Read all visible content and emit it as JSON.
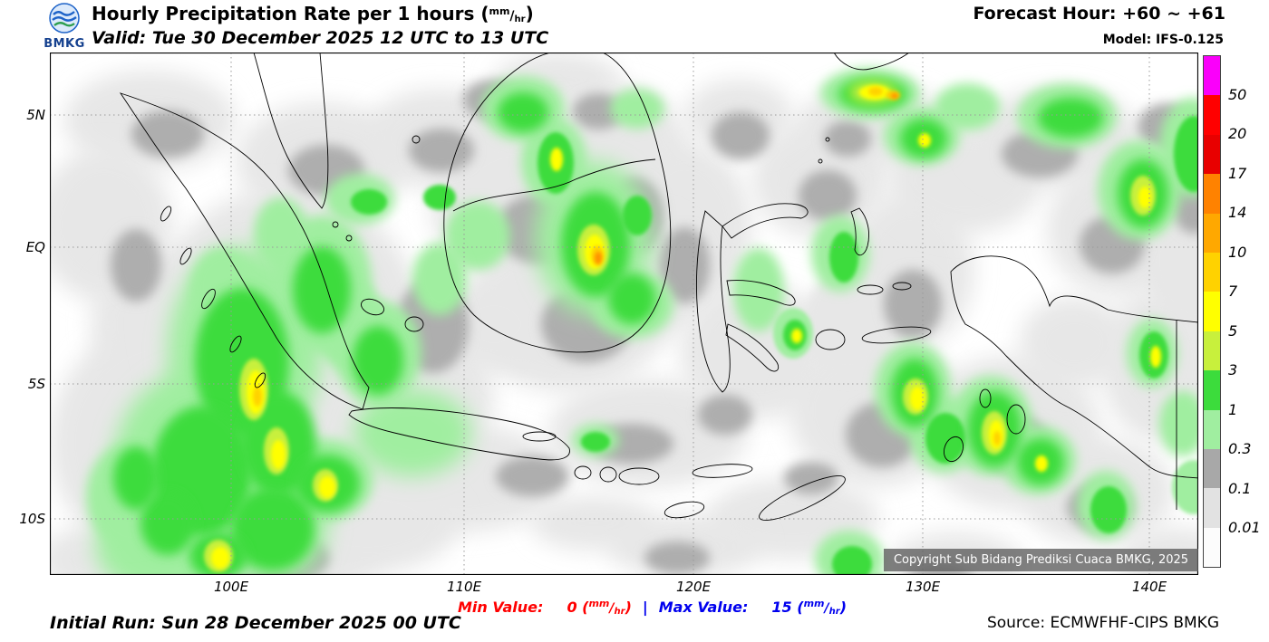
{
  "header": {
    "title_prefix": "Hourly Precipitation Rate per 1 hours ",
    "valid": "Valid: Tue 30 December 2025 12 UTC to 13 UTC",
    "forecast_hour": "Forecast Hour: +60 ~ +61",
    "model": "Model: IFS-0.125",
    "logo_text": "BMKG"
  },
  "units": {
    "open": "(",
    "num": "mm",
    "slash": "/",
    "den": "hr",
    "close": ")"
  },
  "axes": {
    "y": [
      "5N",
      "EQ",
      "5S",
      "10S"
    ],
    "x": [
      "100E",
      "110E",
      "120E",
      "130E",
      "140E"
    ]
  },
  "legend": {
    "labels": [
      "50",
      "20",
      "17",
      "14",
      "10",
      "7",
      "5",
      "3",
      "1",
      "0.3",
      "0.1",
      "0.01"
    ],
    "colors": [
      "#fa00fa",
      "#ff0000",
      "#e80000",
      "#ff8200",
      "#ffa800",
      "#ffd200",
      "#ffff00",
      "#c8f03c",
      "#3cdc3c",
      "#a0eea0",
      "#a8a8a8",
      "#e2e2e2",
      "#fcfcfc"
    ]
  },
  "map": {
    "copyright": "Copyright Sub Bidang Prediksi Cuaca BMKG, 2025",
    "level_colors": [
      "#e7e7e7",
      "#aeaeae",
      "#a0eea0",
      "#3cdc3c",
      "#c8f03c",
      "#ffff00",
      "#ffd200",
      "#ff9000"
    ],
    "blobs": [
      [
        0,
        110,
        75,
        95,
        55
      ],
      [
        0,
        60,
        190,
        75,
        85
      ],
      [
        0,
        135,
        300,
        90,
        80
      ],
      [
        0,
        120,
        430,
        120,
        130
      ],
      [
        0,
        240,
        545,
        130,
        55
      ],
      [
        0,
        300,
        120,
        95,
        65
      ],
      [
        0,
        430,
        95,
        85,
        55
      ],
      [
        0,
        260,
        300,
        150,
        150
      ],
      [
        0,
        390,
        380,
        100,
        90
      ],
      [
        0,
        450,
        470,
        120,
        60
      ],
      [
        0,
        520,
        170,
        100,
        85
      ],
      [
        0,
        620,
        110,
        85,
        75
      ],
      [
        0,
        570,
        290,
        110,
        85
      ],
      [
        0,
        700,
        195,
        75,
        95
      ],
      [
        0,
        660,
        420,
        110,
        60
      ],
      [
        0,
        780,
        330,
        85,
        75
      ],
      [
        0,
        850,
        140,
        75,
        65
      ],
      [
        0,
        910,
        80,
        85,
        45
      ],
      [
        0,
        950,
        240,
        70,
        85
      ],
      [
        0,
        910,
        395,
        95,
        85
      ],
      [
        0,
        1010,
        140,
        85,
        60
      ],
      [
        0,
        1110,
        95,
        95,
        55
      ],
      [
        0,
        1185,
        195,
        85,
        75
      ],
      [
        0,
        1060,
        420,
        100,
        85
      ],
      [
        0,
        1155,
        485,
        85,
        60
      ],
      [
        0,
        1225,
        345,
        65,
        85
      ],
      [
        0,
        1265,
        230,
        55,
        75
      ],
      [
        0,
        820,
        515,
        95,
        45
      ],
      [
        0,
        700,
        545,
        85,
        35
      ],
      [
        0,
        350,
        520,
        100,
        55
      ],
      [
        0,
        1000,
        565,
        75,
        35
      ],
      [
        0,
        600,
        520,
        70,
        30
      ],
      [
        0,
        760,
        70,
        60,
        40
      ],
      [
        0,
        560,
        30,
        70,
        30
      ],
      [
        0,
        660,
        250,
        60,
        70
      ],
      [
        0,
        880,
        300,
        50,
        60
      ],
      [
        0,
        1130,
        320,
        60,
        50
      ],
      [
        0,
        1240,
        560,
        60,
        35
      ],
      [
        0,
        490,
        300,
        60,
        50
      ],
      [
        0,
        60,
        560,
        70,
        40
      ],
      [
        1,
        130,
        90,
        40,
        26
      ],
      [
        1,
        95,
        235,
        28,
        40
      ],
      [
        1,
        305,
        130,
        42,
        28
      ],
      [
        1,
        432,
        108,
        36,
        24
      ],
      [
        1,
        540,
        195,
        48,
        38
      ],
      [
        1,
        592,
        300,
        50,
        42
      ],
      [
        1,
        645,
        180,
        32,
        42
      ],
      [
        1,
        700,
        235,
        28,
        42
      ],
      [
        1,
        762,
        92,
        32,
        26
      ],
      [
        1,
        858,
        158,
        32,
        28
      ],
      [
        1,
        952,
        278,
        32,
        38
      ],
      [
        1,
        1092,
        112,
        42,
        26
      ],
      [
        1,
        1172,
        212,
        36,
        32
      ],
      [
        1,
        1232,
        82,
        32,
        26
      ],
      [
        1,
        642,
        432,
        46,
        22
      ],
      [
        1,
        532,
        468,
        40,
        22
      ],
      [
        1,
        918,
        422,
        40,
        36
      ],
      [
        1,
        1062,
        432,
        40,
        32
      ],
      [
        1,
        1158,
        502,
        36,
        26
      ],
      [
        1,
        262,
        558,
        46,
        26
      ],
      [
        1,
        692,
        558,
        36,
        18
      ],
      [
        1,
        982,
        588,
        40,
        22
      ],
      [
        1,
        422,
        302,
        40,
        52
      ],
      [
        1,
        202,
        352,
        36,
        46
      ],
      [
        1,
        488,
        52,
        32,
        22
      ],
      [
        1,
        605,
        65,
        28,
        20
      ],
      [
        1,
        880,
        95,
        26,
        20
      ],
      [
        1,
        1262,
        160,
        26,
        40
      ],
      [
        1,
        745,
        400,
        30,
        22
      ],
      [
        1,
        840,
        470,
        30,
        18
      ],
      [
        2,
        215,
        330,
        85,
        115
      ],
      [
        2,
        165,
        455,
        95,
        105
      ],
      [
        2,
        125,
        545,
        75,
        55
      ],
      [
        2,
        300,
        255,
        55,
        75
      ],
      [
        2,
        362,
        332,
        48,
        58
      ],
      [
        2,
        400,
        420,
        65,
        48
      ],
      [
        2,
        342,
        162,
        38,
        28
      ],
      [
        2,
        600,
        205,
        65,
        85
      ],
      [
        2,
        556,
        120,
        36,
        48
      ],
      [
        2,
        642,
        278,
        46,
        38
      ],
      [
        2,
        472,
        202,
        36,
        38
      ],
      [
        2,
        872,
        222,
        32,
        42
      ],
      [
        2,
        522,
        62,
        46,
        36
      ],
      [
        2,
        905,
        45,
        55,
        28
      ],
      [
        2,
        962,
        92,
        42,
        32
      ],
      [
        2,
        1012,
        60,
        36,
        26
      ],
      [
        2,
        1122,
        70,
        55,
        36
      ],
      [
        2,
        1202,
        152,
        46,
        55
      ],
      [
        2,
        1260,
        105,
        36,
        55
      ],
      [
        2,
        952,
        372,
        42,
        52
      ],
      [
        2,
        986,
        422,
        38,
        42
      ],
      [
        2,
        1038,
        412,
        46,
        55
      ],
      [
        2,
        1090,
        450,
        42,
        38
      ],
      [
        2,
        1165,
        500,
        32,
        38
      ],
      [
        2,
        1216,
        332,
        28,
        38
      ],
      [
        2,
        242,
        522,
        65,
        65
      ],
      [
        2,
        302,
        472,
        55,
        46
      ],
      [
        2,
        882,
        560,
        38,
        32
      ],
      [
        2,
        905,
        598,
        32,
        22
      ],
      [
        2,
        782,
        262,
        28,
        46
      ],
      [
        2,
        820,
        310,
        22,
        28
      ],
      [
        2,
        602,
        428,
        26,
        18
      ],
      [
        2,
        648,
        62,
        30,
        22
      ],
      [
        2,
        1250,
        410,
        26,
        36
      ],
      [
        2,
        1262,
        480,
        24,
        30
      ],
      [
        2,
        430,
        250,
        30,
        40
      ],
      [
        2,
        330,
        300,
        40,
        50
      ],
      [
        2,
        255,
        200,
        30,
        40
      ],
      [
        2,
        190,
        260,
        35,
        45
      ],
      [
        2,
        90,
        490,
        50,
        60
      ],
      [
        3,
        212,
        342,
        52,
        82
      ],
      [
        3,
        168,
        462,
        55,
        72
      ],
      [
        3,
        252,
        432,
        42,
        58
      ],
      [
        3,
        300,
        262,
        32,
        48
      ],
      [
        3,
        362,
        340,
        28,
        38
      ],
      [
        3,
        602,
        212,
        38,
        58
      ],
      [
        3,
        642,
        272,
        26,
        28
      ],
      [
        3,
        558,
        122,
        20,
        34
      ],
      [
        3,
        522,
        66,
        28,
        22
      ],
      [
        3,
        876,
        226,
        16,
        28
      ],
      [
        3,
        908,
        46,
        38,
        18
      ],
      [
        3,
        964,
        95,
        26,
        22
      ],
      [
        3,
        1126,
        72,
        36,
        22
      ],
      [
        3,
        1206,
        156,
        28,
        38
      ],
      [
        3,
        1262,
        112,
        22,
        42
      ],
      [
        3,
        954,
        376,
        26,
        38
      ],
      [
        3,
        988,
        426,
        22,
        28
      ],
      [
        3,
        1042,
        416,
        30,
        42
      ],
      [
        3,
        1093,
        452,
        26,
        26
      ],
      [
        3,
        1218,
        334,
        16,
        26
      ],
      [
        3,
        246,
        526,
        46,
        46
      ],
      [
        3,
        306,
        476,
        36,
        32
      ],
      [
        3,
        186,
        556,
        32,
        26
      ],
      [
        3,
        885,
        565,
        22,
        20
      ],
      [
        3,
        822,
        312,
        13,
        17
      ],
      [
        3,
        352,
        165,
        20,
        14
      ],
      [
        3,
        1168,
        505,
        20,
        26
      ],
      [
        3,
        602,
        430,
        16,
        11
      ],
      [
        3,
        130,
        520,
        30,
        35
      ],
      [
        3,
        95,
        470,
        25,
        35
      ],
      [
        3,
        430,
        160,
        18,
        14
      ],
      [
        3,
        648,
        180,
        16,
        22
      ],
      [
        4,
        225,
        372,
        16,
        34
      ],
      [
        4,
        250,
        440,
        14,
        26
      ],
      [
        4,
        304,
        478,
        14,
        18
      ],
      [
        4,
        600,
        218,
        18,
        28
      ],
      [
        4,
        908,
        44,
        26,
        12
      ],
      [
        4,
        1042,
        420,
        14,
        24
      ],
      [
        4,
        186,
        556,
        16,
        18
      ],
      [
        4,
        955,
        380,
        14,
        20
      ],
      [
        4,
        1206,
        158,
        14,
        22
      ],
      [
        5,
        227,
        375,
        10,
        24
      ],
      [
        5,
        252,
        444,
        8,
        16
      ],
      [
        5,
        306,
        480,
        9,
        12
      ],
      [
        5,
        601,
        220,
        11,
        19
      ],
      [
        5,
        910,
        44,
        17,
        8
      ],
      [
        5,
        1044,
        422,
        8,
        16
      ],
      [
        5,
        188,
        558,
        10,
        12
      ],
      [
        5,
        957,
        382,
        8,
        13
      ],
      [
        5,
        1220,
        336,
        6,
        12
      ],
      [
        5,
        559,
        118,
        7,
        13
      ],
      [
        5,
        824,
        313,
        6,
        8
      ],
      [
        5,
        1094,
        454,
        7,
        9
      ],
      [
        5,
        965,
        97,
        7,
        8
      ],
      [
        5,
        1208,
        160,
        7,
        12
      ],
      [
        6,
        604,
        224,
        7,
        11
      ],
      [
        6,
        930,
        47,
        8,
        5
      ],
      [
        6,
        229,
        380,
        5,
        11
      ],
      [
        6,
        1045,
        426,
        4,
        8
      ],
      [
        6,
        911,
        43,
        8,
        5
      ],
      [
        7,
        605,
        227,
        4,
        7
      ],
      [
        7,
        932,
        48,
        4,
        3
      ]
    ]
  },
  "footer": {
    "initial_run": "Initial Run: Sun 28 December 2025 00 UTC",
    "min_label": "Min Value:",
    "min_value": "0",
    "separator": "|",
    "max_label": "Max Value:",
    "max_value": "15",
    "source": "Source: ECMWFHF-CIPS BMKG",
    "min_color": "#ff0000",
    "max_color": "#0000ee"
  }
}
